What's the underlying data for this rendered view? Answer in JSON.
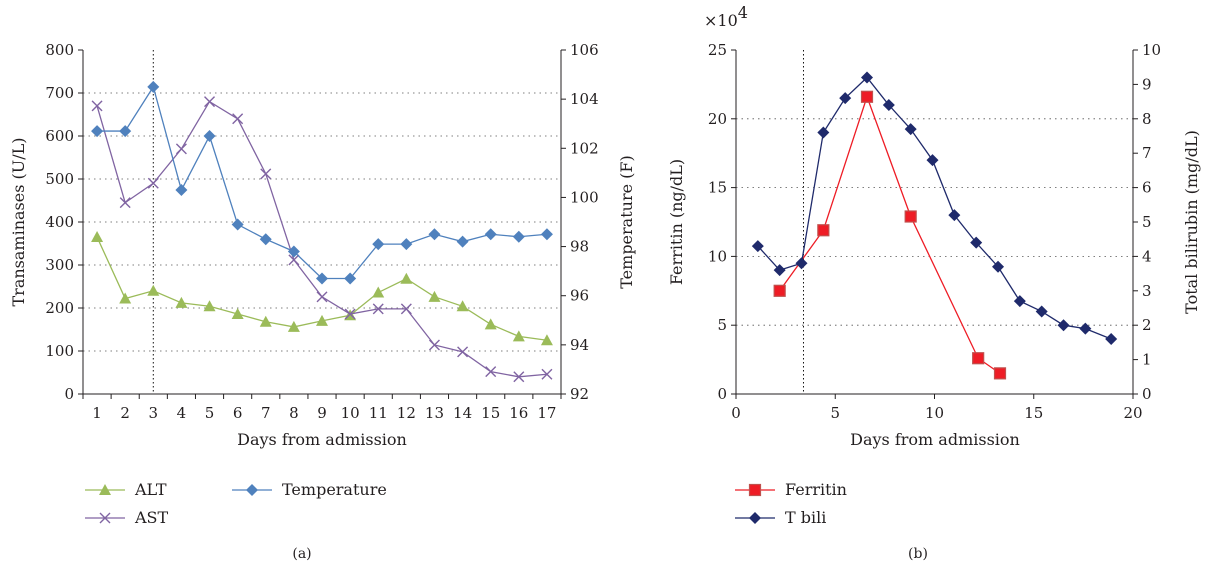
{
  "chart_data": [
    {
      "panel_label": "(a)",
      "type": "line",
      "xlabel": "Days from admission",
      "ylabel": "Transaminases (U/L)",
      "y2label": "Temperature (F)",
      "categories": [
        "1",
        "2",
        "3",
        "4",
        "5",
        "6",
        "7",
        "8",
        "9",
        "10",
        "11",
        "12",
        "13",
        "14",
        "15",
        "16",
        "17"
      ],
      "ylim": [
        0,
        800
      ],
      "yticks": [
        "0",
        "100",
        "200",
        "300",
        "400",
        "500",
        "600",
        "700",
        "800"
      ],
      "y2lim": [
        92,
        106
      ],
      "y2ticks": [
        "92",
        "94",
        "96",
        "98",
        "100",
        "102",
        "104",
        "106"
      ],
      "grid": "dotted horizontal",
      "reference_line_x": 3,
      "legend_position": "bottom",
      "series": [
        {
          "name": "ALT",
          "axis": "left",
          "marker": "triangle",
          "color": "#9bbb59",
          "values": [
            365,
            222,
            240,
            212,
            204,
            186,
            168,
            156,
            170,
            183,
            236,
            268,
            226,
            204,
            162,
            134,
            125
          ]
        },
        {
          "name": "AST",
          "axis": "left",
          "marker": "x",
          "color": "#8064a2",
          "values": [
            670,
            445,
            490,
            570,
            680,
            640,
            512,
            312,
            226,
            186,
            198,
            198,
            114,
            98,
            52,
            40,
            46
          ]
        },
        {
          "name": "Temperature",
          "axis": "right",
          "marker": "diamond",
          "color": "#4f81bd",
          "values": [
            102.7,
            102.7,
            104.5,
            100.3,
            102.5,
            98.9,
            98.3,
            97.8,
            96.7,
            96.7,
            98.1,
            98.1,
            98.5,
            98.2,
            98.5,
            98.4,
            98.5
          ]
        }
      ]
    },
    {
      "panel_label": "(b)",
      "type": "line",
      "xlabel": "Days from admission",
      "ylabel": "Ferritin (ng/dL)",
      "y2label": "Total bilirubin (mg/dL)",
      "y_multiplier": "×10",
      "y_multiplier_exponent": "4",
      "xlim": [
        0,
        20
      ],
      "xticks": [
        "0",
        "5",
        "10",
        "15",
        "20"
      ],
      "ylim": [
        0,
        25
      ],
      "yticks": [
        "0",
        "5",
        "10",
        "15",
        "20",
        "25"
      ],
      "y2lim": [
        0,
        10
      ],
      "y2ticks": [
        "0",
        "1",
        "2",
        "3",
        "4",
        "5",
        "6",
        "7",
        "8",
        "9",
        "10"
      ],
      "grid": "dotted horizontal",
      "reference_line_x": 3.4,
      "legend_position": "bottom",
      "series": [
        {
          "name": "Ferritin",
          "axis": "left",
          "marker": "square",
          "color": "#ee1c25",
          "x": [
            2.2,
            4.4,
            6.6,
            8.8,
            12.2,
            13.3
          ],
          "values": [
            7.5,
            11.9,
            21.6,
            12.9,
            2.6,
            1.5
          ]
        },
        {
          "name": "T bili",
          "axis": "right",
          "marker": "diamond",
          "color": "#1f2a6b",
          "x": [
            1.1,
            2.2,
            3.3,
            4.4,
            5.5,
            6.6,
            7.7,
            8.8,
            9.9,
            11.0,
            12.1,
            13.2,
            14.3,
            15.4,
            16.5,
            17.6,
            18.9
          ],
          "values": [
            4.3,
            3.6,
            3.8,
            7.6,
            8.6,
            9.2,
            8.4,
            7.7,
            6.8,
            5.2,
            4.4,
            3.7,
            2.7,
            2.4,
            2.0,
            1.9,
            1.6
          ]
        }
      ]
    }
  ],
  "palette": {
    "alt": "#9bbb59",
    "ast": "#8064a2",
    "temperature": "#4f81bd",
    "ferritin": "#ee1c25",
    "ferritin_edge": "#c0504d",
    "tbili": "#1f2a6b",
    "axis": "#231f20"
  }
}
